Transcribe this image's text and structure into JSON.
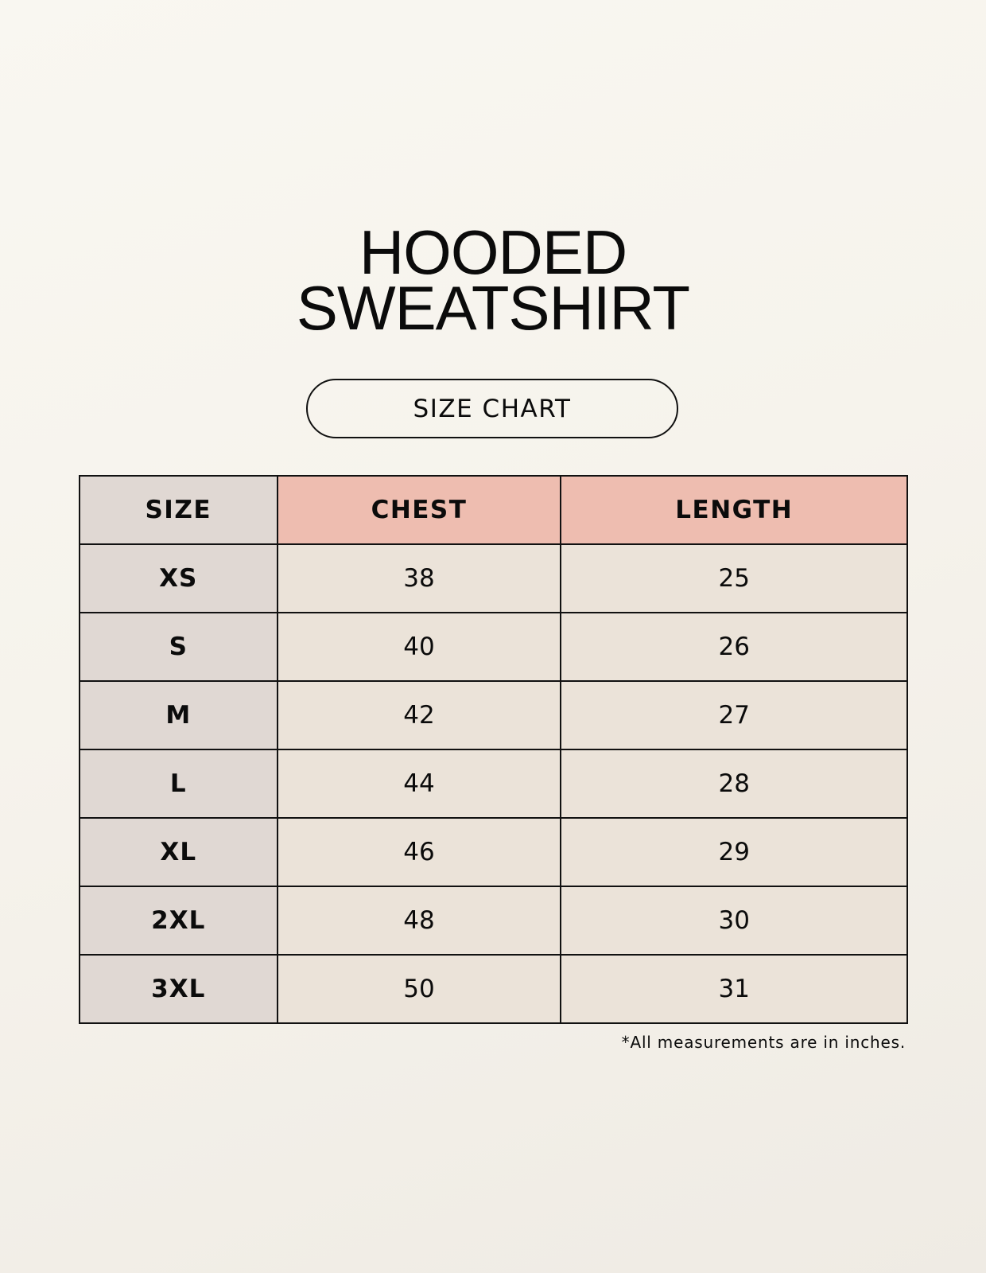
{
  "title": {
    "line1": "HOODED",
    "line2": "SWEATSHIRT"
  },
  "subtitle": "SIZE CHART",
  "table": {
    "headers": [
      "SIZE",
      "CHEST",
      "LENGTH"
    ],
    "rows": [
      [
        "XS",
        "38",
        "25"
      ],
      [
        "S",
        "40",
        "26"
      ],
      [
        "M",
        "42",
        "27"
      ],
      [
        "L",
        "44",
        "28"
      ],
      [
        "XL",
        "46",
        "29"
      ],
      [
        "2XL",
        "48",
        "30"
      ],
      [
        "3XL",
        "50",
        "31"
      ]
    ]
  },
  "footnote": "*All measurements are in inches.",
  "colors": {
    "size_column": "#e0d8d3",
    "header_accent": "#eebdb0",
    "cell": "#ebe3d9",
    "border": "#111111"
  }
}
